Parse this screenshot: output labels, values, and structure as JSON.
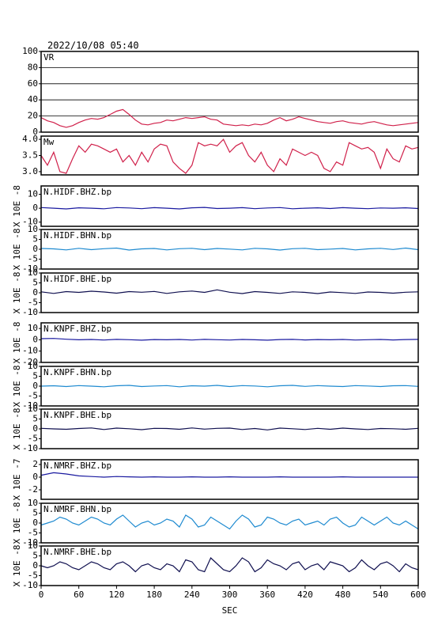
{
  "chart_data": [
    {
      "type": "line",
      "title": "2022/10/08 05:40",
      "label": "VR",
      "color": "#d0204a",
      "grid": true,
      "xlim": [
        0,
        600
      ],
      "ylim": [
        0,
        100
      ],
      "yticks": [
        0,
        20,
        40,
        60,
        80,
        100
      ],
      "x": [
        0,
        10,
        20,
        30,
        40,
        50,
        60,
        70,
        80,
        90,
        100,
        110,
        120,
        130,
        140,
        150,
        160,
        170,
        180,
        190,
        200,
        210,
        220,
        230,
        240,
        250,
        260,
        270,
        280,
        290,
        300,
        310,
        320,
        330,
        340,
        350,
        360,
        370,
        380,
        390,
        400,
        410,
        420,
        430,
        440,
        450,
        460,
        470,
        480,
        490,
        500,
        510,
        520,
        530,
        540,
        550,
        560,
        570,
        580,
        590,
        600
      ],
      "values": [
        18,
        14,
        12,
        8,
        6,
        8,
        12,
        15,
        17,
        16,
        18,
        22,
        26,
        28,
        22,
        15,
        10,
        9,
        11,
        12,
        15,
        14,
        16,
        18,
        17,
        18,
        19,
        16,
        15,
        10,
        9,
        8,
        9,
        8,
        10,
        9,
        11,
        15,
        18,
        14,
        16,
        19,
        17,
        15,
        13,
        12,
        11,
        13,
        14,
        12,
        11,
        10,
        12,
        13,
        11,
        9,
        8,
        9,
        10,
        11,
        12
      ]
    },
    {
      "type": "line",
      "label": "Mw",
      "color": "#d0204a",
      "grid": false,
      "xlim": [
        0,
        600
      ],
      "ylim": [
        2.9,
        4.1
      ],
      "yticks": [
        {
          "value": 3,
          "label": "3.0"
        },
        3.5,
        {
          "value": 4,
          "label": "4.0"
        }
      ],
      "x": [
        0,
        10,
        20,
        30,
        40,
        50,
        60,
        70,
        80,
        90,
        100,
        110,
        120,
        130,
        140,
        150,
        160,
        170,
        180,
        190,
        200,
        210,
        220,
        230,
        240,
        250,
        260,
        270,
        280,
        290,
        300,
        310,
        320,
        330,
        340,
        350,
        360,
        370,
        380,
        390,
        400,
        410,
        420,
        430,
        440,
        450,
        460,
        470,
        480,
        490,
        500,
        510,
        520,
        530,
        540,
        550,
        560,
        570,
        580,
        590,
        600
      ],
      "values": [
        3.5,
        3.2,
        3.6,
        3.0,
        2.95,
        3.4,
        3.8,
        3.6,
        3.85,
        3.8,
        3.7,
        3.6,
        3.7,
        3.3,
        3.5,
        3.2,
        3.6,
        3.3,
        3.7,
        3.85,
        3.8,
        3.3,
        3.1,
        2.95,
        3.2,
        3.9,
        3.8,
        3.85,
        3.8,
        4.0,
        3.6,
        3.8,
        3.9,
        3.5,
        3.3,
        3.6,
        3.2,
        3.0,
        3.4,
        3.2,
        3.7,
        3.6,
        3.5,
        3.6,
        3.5,
        3.1,
        3.0,
        3.3,
        3.2,
        3.9,
        3.8,
        3.7,
        3.75,
        3.6,
        3.1,
        3.7,
        3.4,
        3.3,
        3.8,
        3.7,
        3.75
      ]
    },
    {
      "type": "line",
      "label": "N.HIDF.BHZ.bp",
      "ylabel": "X 10E -8",
      "color": "#1a1aa0",
      "xlim": [
        0,
        600
      ],
      "ylim": [
        -13,
        16
      ],
      "yticks": [
        -10,
        0,
        10
      ],
      "x": [
        0,
        20,
        40,
        60,
        80,
        100,
        120,
        140,
        160,
        180,
        200,
        220,
        240,
        260,
        280,
        300,
        320,
        340,
        360,
        380,
        400,
        420,
        440,
        460,
        480,
        500,
        520,
        540,
        560,
        580,
        600
      ],
      "values": [
        0.5,
        0,
        -0.5,
        0.3,
        0,
        -0.4,
        0.5,
        0.2,
        -0.3,
        0.4,
        0,
        -0.5,
        0.3,
        0.6,
        -0.2,
        0,
        0.4,
        -0.3,
        0.2,
        0.5,
        -0.4,
        0,
        0.3,
        -0.2,
        0.4,
        0,
        -0.3,
        0.2,
        0,
        0.3,
        -0.2
      ]
    },
    {
      "type": "line",
      "label": "N.HIDF.BHN.bp",
      "ylabel": "X 10E -8",
      "color": "#1e8ad0",
      "xlim": [
        0,
        600
      ],
      "ylim": [
        -10,
        10
      ],
      "yticks": [
        -10,
        -5,
        0,
        5,
        10
      ],
      "x": [
        0,
        20,
        40,
        60,
        80,
        100,
        120,
        140,
        160,
        180,
        200,
        220,
        240,
        260,
        280,
        300,
        320,
        340,
        360,
        380,
        400,
        420,
        440,
        460,
        480,
        500,
        520,
        540,
        560,
        580,
        600
      ],
      "values": [
        0.4,
        0.2,
        -0.3,
        0.5,
        -0.2,
        0.3,
        0.6,
        -0.4,
        0.2,
        0.4,
        -0.3,
        0.3,
        0.5,
        -0.2,
        0.4,
        0.1,
        -0.3,
        0.5,
        0.2,
        -0.4,
        0.3,
        0.5,
        -0.2,
        0.1,
        0.4,
        -0.3,
        0.2,
        0.5,
        -0.1,
        0.6,
        -0.2
      ]
    },
    {
      "type": "line",
      "label": "N.HIDF.BHE.bp",
      "ylabel": "X 10E -8",
      "color": "#101050",
      "xlim": [
        0,
        600
      ],
      "ylim": [
        -10,
        10
      ],
      "yticks": [
        -10,
        -5,
        0,
        5,
        10
      ],
      "x": [
        0,
        20,
        40,
        60,
        80,
        100,
        120,
        140,
        160,
        180,
        200,
        220,
        240,
        260,
        280,
        300,
        320,
        340,
        360,
        380,
        400,
        420,
        440,
        460,
        480,
        500,
        520,
        540,
        560,
        580,
        600
      ],
      "values": [
        0.5,
        -0.3,
        0.6,
        0.2,
        0.8,
        0.4,
        -0.2,
        0.6,
        0.3,
        0.7,
        -0.3,
        0.5,
        0.9,
        0.2,
        1.5,
        0.3,
        -0.4,
        0.6,
        0.2,
        -0.3,
        0.5,
        0.2,
        -0.4,
        0.4,
        0.1,
        -0.3,
        0.4,
        0.2,
        -0.2,
        0.3,
        0.5
      ]
    },
    {
      "type": "line",
      "label": "N.KNPF.BHZ.bp",
      "ylabel": "X 10E -8",
      "color": "#1a1aa0",
      "xlim": [
        0,
        600
      ],
      "ylim": [
        -20,
        15
      ],
      "yticks": [
        -20,
        -10,
        0,
        10
      ],
      "x": [
        0,
        20,
        40,
        60,
        80,
        100,
        120,
        140,
        160,
        180,
        200,
        220,
        240,
        260,
        280,
        300,
        320,
        340,
        360,
        380,
        400,
        420,
        440,
        460,
        480,
        500,
        520,
        540,
        560,
        580,
        600
      ],
      "values": [
        1,
        1.2,
        0.5,
        0,
        0.3,
        -0.2,
        0.4,
        0.1,
        -0.3,
        0.2,
        0,
        0.3,
        -0.2,
        0.4,
        0.1,
        -0.2,
        0.3,
        0,
        -0.3,
        0.2,
        0.4,
        -0.1,
        0.2,
        0,
        0.3,
        -0.2,
        0.1,
        0.3,
        -0.1,
        0.2,
        0.4
      ]
    },
    {
      "type": "line",
      "label": "N.KNPF.BHN.bp",
      "ylabel": "X 10E -8",
      "color": "#1e8ad0",
      "xlim": [
        0,
        600
      ],
      "ylim": [
        -10,
        10
      ],
      "yticks": [
        -10,
        -5,
        0,
        5,
        10
      ],
      "x": [
        0,
        20,
        40,
        60,
        80,
        100,
        120,
        140,
        160,
        180,
        200,
        220,
        240,
        260,
        280,
        300,
        320,
        340,
        360,
        380,
        400,
        420,
        440,
        460,
        480,
        500,
        520,
        540,
        560,
        580,
        600
      ],
      "values": [
        0,
        0.2,
        -0.2,
        0.3,
        0,
        -0.3,
        0.2,
        0.4,
        -0.2,
        0.1,
        0.3,
        -0.3,
        0.2,
        0,
        0.4,
        -0.2,
        0.3,
        0.1,
        -0.3,
        0.2,
        0.4,
        -0.1,
        0.3,
        0,
        -0.2,
        0.3,
        0.1,
        -0.2,
        0.2,
        0.3,
        -0.1
      ]
    },
    {
      "type": "line",
      "label": "N.KNPF.BHE.bp",
      "ylabel": "X 10E -8",
      "color": "#101050",
      "xlim": [
        0,
        600
      ],
      "ylim": [
        -10,
        10
      ],
      "yticks": [
        -10,
        -5,
        0,
        5,
        10
      ],
      "x": [
        0,
        20,
        40,
        60,
        80,
        100,
        120,
        140,
        160,
        180,
        200,
        220,
        240,
        260,
        280,
        300,
        320,
        340,
        360,
        380,
        400,
        420,
        440,
        460,
        480,
        500,
        520,
        540,
        560,
        580,
        600
      ],
      "values": [
        0.3,
        0,
        -0.2,
        0.2,
        0.5,
        -0.3,
        0.4,
        0.1,
        -0.4,
        0.3,
        0.2,
        -0.2,
        0.5,
        -0.1,
        0.3,
        0.4,
        -0.3,
        0.2,
        -0.5,
        0.4,
        0.1,
        -0.3,
        0.3,
        -0.2,
        0.4,
        0,
        -0.3,
        0.2,
        0.1,
        -0.2,
        0.3
      ]
    },
    {
      "type": "line",
      "label": "N.NMRF.BHZ.bp",
      "ylabel": "X 10E -7",
      "color": "#1a1aa0",
      "xlim": [
        0,
        600
      ],
      "ylim": [
        -3.5,
        2.75
      ],
      "yticks": [
        -2,
        0,
        2
      ],
      "x": [
        0,
        20,
        40,
        60,
        80,
        100,
        120,
        140,
        160,
        180,
        200,
        220,
        240,
        260,
        280,
        300,
        320,
        340,
        360,
        380,
        400,
        420,
        440,
        460,
        480,
        500,
        520,
        540,
        560,
        580,
        600
      ],
      "values": [
        0.3,
        0.7,
        0.5,
        0.2,
        0.1,
        0,
        0.1,
        0.05,
        0,
        0.05,
        0,
        0,
        0.05,
        0,
        0,
        0.05,
        0,
        0,
        0,
        0.05,
        0,
        0,
        0,
        0,
        0.05,
        0,
        0,
        0,
        0,
        0,
        0
      ]
    },
    {
      "type": "line",
      "label": "N.NMRF.BHN.bp",
      "ylabel": "X 10E -8",
      "color": "#1e8ad0",
      "xlim": [
        0,
        600
      ],
      "ylim": [
        -10,
        10
      ],
      "yticks": [
        -10,
        -5,
        0,
        5,
        10
      ],
      "x": [
        0,
        10,
        20,
        30,
        40,
        50,
        60,
        70,
        80,
        90,
        100,
        110,
        120,
        130,
        140,
        150,
        160,
        170,
        180,
        190,
        200,
        210,
        220,
        230,
        240,
        250,
        260,
        270,
        280,
        290,
        300,
        310,
        320,
        330,
        340,
        350,
        360,
        370,
        380,
        390,
        400,
        410,
        420,
        430,
        440,
        450,
        460,
        470,
        480,
        490,
        500,
        510,
        520,
        530,
        540,
        550,
        560,
        570,
        580,
        590,
        600
      ],
      "values": [
        -1,
        0,
        1,
        3,
        2,
        0,
        -1,
        1,
        3,
        2,
        0,
        -1,
        2,
        4,
        1,
        -2,
        0,
        1,
        -1,
        0,
        2,
        1,
        -2,
        4,
        2,
        -2,
        -1,
        3,
        1,
        -1,
        -3,
        1,
        4,
        2,
        -2,
        -1,
        3,
        2,
        0,
        -1,
        1,
        2,
        -1,
        0,
        1,
        -1,
        2,
        3,
        0,
        -2,
        -1,
        3,
        1,
        -1,
        1,
        3,
        0,
        -1,
        1,
        -1,
        -3
      ]
    },
    {
      "type": "line",
      "label": "N.NMRF.BHE.bp",
      "ylabel": "X 10E -8",
      "color": "#101050",
      "xlim": [
        0,
        600
      ],
      "ylim": [
        -10,
        10
      ],
      "yticks": [
        -10,
        -5,
        0,
        5,
        10
      ],
      "xlabel": "SEC",
      "xticks": [
        0,
        60,
        120,
        180,
        240,
        300,
        360,
        420,
        480,
        540,
        600
      ],
      "x": [
        0,
        10,
        20,
        30,
        40,
        50,
        60,
        70,
        80,
        90,
        100,
        110,
        120,
        130,
        140,
        150,
        160,
        170,
        180,
        190,
        200,
        210,
        220,
        230,
        240,
        250,
        260,
        270,
        280,
        290,
        300,
        310,
        320,
        330,
        340,
        350,
        360,
        370,
        380,
        390,
        400,
        410,
        420,
        430,
        440,
        450,
        460,
        470,
        480,
        490,
        500,
        510,
        520,
        530,
        540,
        550,
        560,
        570,
        580,
        590,
        600
      ],
      "values": [
        0,
        -1,
        0,
        2,
        1,
        -1,
        -2,
        0,
        2,
        1,
        -1,
        -2,
        1,
        2,
        0,
        -3,
        0,
        1,
        -1,
        -2,
        1,
        0,
        -3,
        3,
        2,
        -2,
        -3,
        4,
        1,
        -2,
        -3,
        0,
        4,
        2,
        -3,
        -1,
        3,
        1,
        0,
        -2,
        1,
        2,
        -2,
        0,
        1,
        -2,
        2,
        1,
        0,
        -3,
        -1,
        3,
        0,
        -2,
        1,
        2,
        0,
        -3,
        1,
        -1,
        -2
      ]
    }
  ]
}
